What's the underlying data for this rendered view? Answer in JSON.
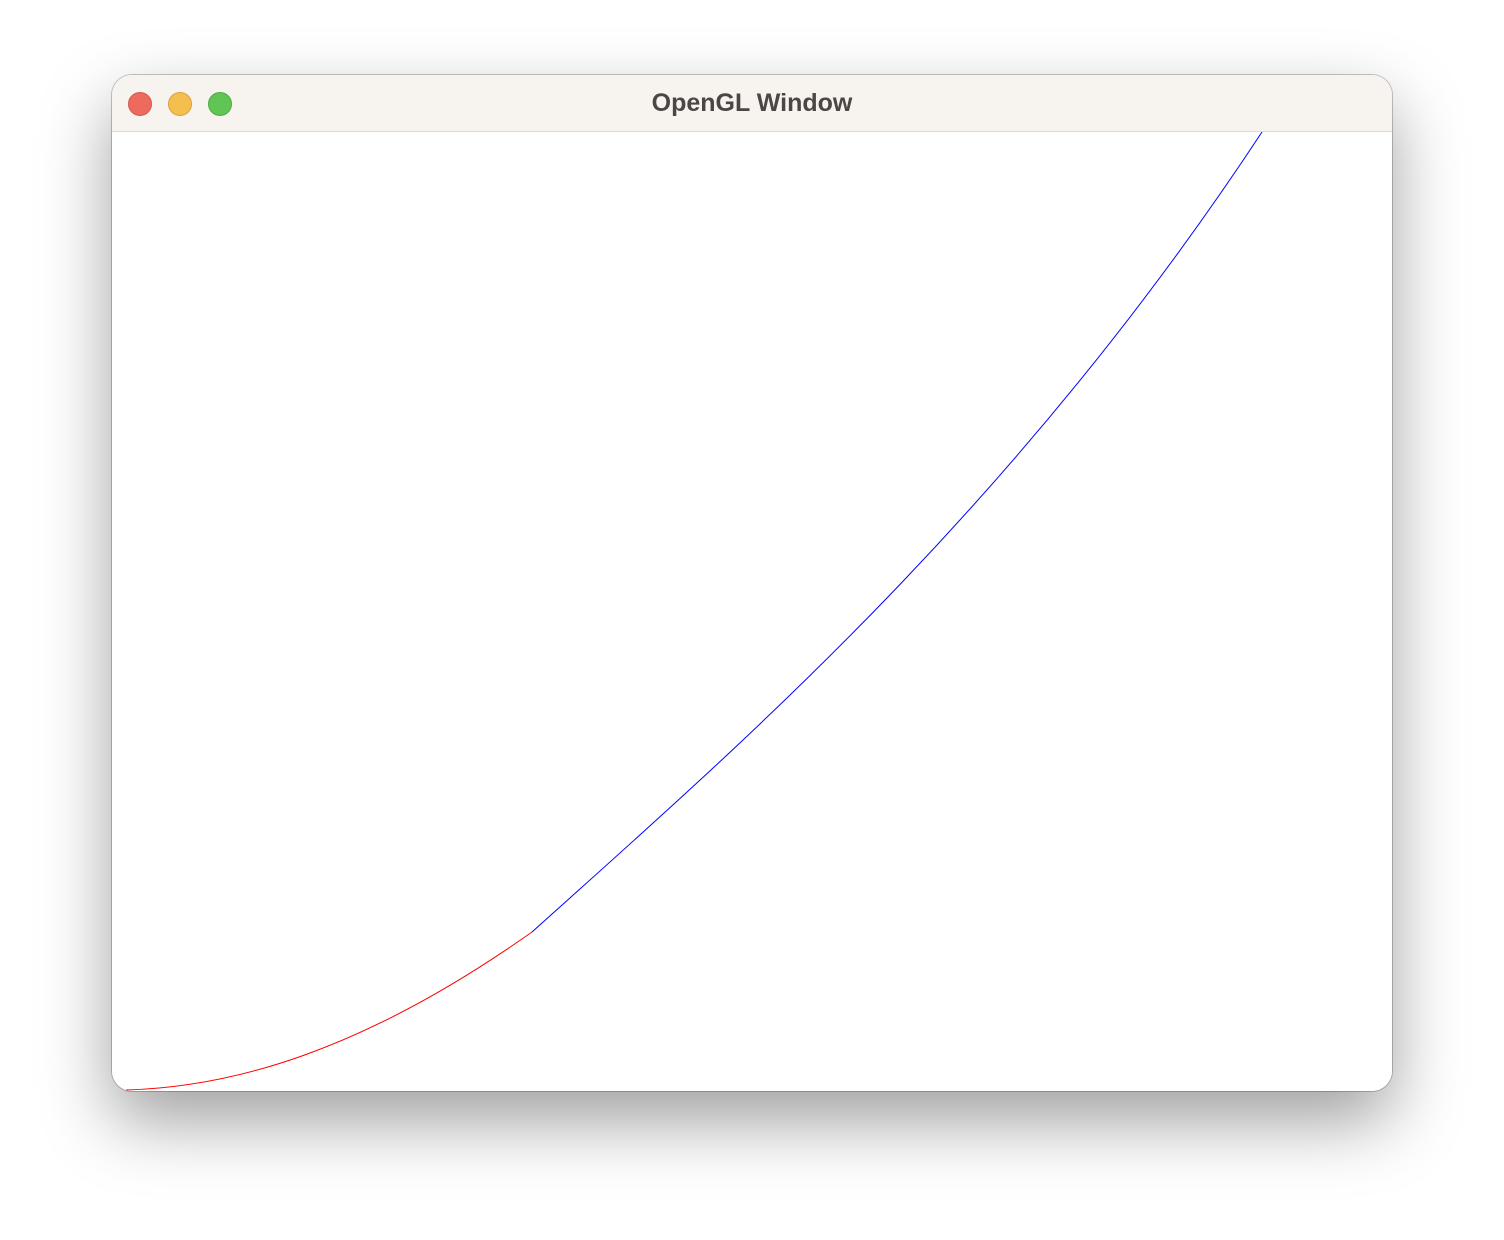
{
  "window": {
    "title": "OpenGL Window"
  },
  "canvas": {
    "background": "#ffffff",
    "curves": [
      {
        "color": "#ff0000",
        "x_range": [
          0.0,
          0.31
        ],
        "function": "quadratic-ease"
      },
      {
        "color": "#0000ff",
        "x_range": [
          0.31,
          0.9
        ],
        "function": "rising-convex"
      }
    ]
  },
  "colors": {
    "titlebar": "#f7f3ef",
    "close": "#ed6a5e",
    "minimize": "#f5bf4f",
    "zoom": "#61c554"
  }
}
